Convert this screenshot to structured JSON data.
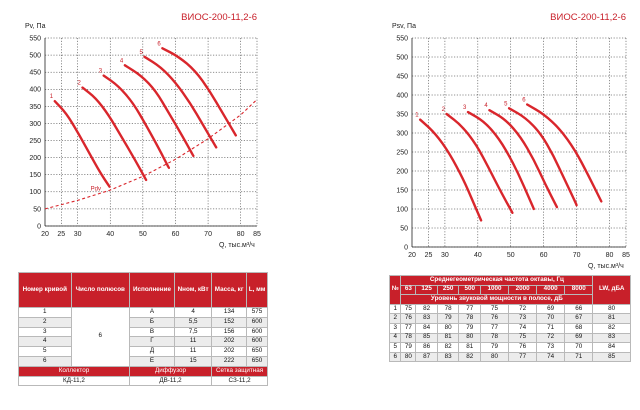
{
  "chart_data": [
    {
      "type": "line",
      "title": "ВИОС-200-11,2-6",
      "ylabel": "Pv, Па",
      "xlabel": "Q, тыс.м³/ч",
      "xlim": [
        20,
        85
      ],
      "ylim": [
        0,
        550
      ],
      "xticks": [
        "20",
        "25",
        "30",
        "40",
        "50",
        "60",
        "70",
        "80",
        "85"
      ],
      "yticks": [
        "0",
        "50",
        "100",
        "150",
        "200",
        "250",
        "300",
        "350",
        "400",
        "450",
        "500",
        "550"
      ],
      "grid": true,
      "series": [
        {
          "name": "1",
          "x": [
            23.0,
            26.5,
            30.0,
            33.5,
            37.0,
            39.8
          ],
          "y": [
            365,
            330,
            275,
            215,
            155,
            115
          ]
        },
        {
          "name": "2",
          "x": [
            31.5,
            35.5,
            39.5,
            43.5,
            47.5,
            51.0
          ],
          "y": [
            405,
            375,
            325,
            260,
            195,
            135
          ]
        },
        {
          "name": "3",
          "x": [
            38.0,
            42.5,
            47.0,
            51.0,
            55.0,
            58.0
          ],
          "y": [
            440,
            410,
            360,
            295,
            225,
            170
          ]
        },
        {
          "name": "4",
          "x": [
            44.5,
            49.5,
            54.0,
            58.0,
            62.0,
            65.5
          ],
          "y": [
            470,
            440,
            395,
            330,
            265,
            205
          ]
        },
        {
          "name": "5",
          "x": [
            50.5,
            55.5,
            60.0,
            64.5,
            68.5,
            72.5
          ],
          "y": [
            495,
            465,
            420,
            360,
            295,
            230
          ]
        },
        {
          "name": "6",
          "x": [
            56.0,
            61.0,
            66.0,
            70.5,
            74.5,
            78.5
          ],
          "y": [
            520,
            495,
            455,
            395,
            330,
            265
          ]
        }
      ],
      "system_curve": {
        "name": "Pdv",
        "x": [
          20,
          30,
          40,
          50,
          60,
          70,
          80,
          85
        ],
        "y": [
          50,
          75,
          105,
          145,
          195,
          255,
          325,
          370
        ]
      }
    },
    {
      "type": "line",
      "title": "ВИОС-200-11,2-6",
      "ylabel": "Psv, Па",
      "xlabel": "Q, тыс.м³/ч",
      "xlim": [
        20,
        85
      ],
      "ylim": [
        0,
        550
      ],
      "xticks": [
        "20",
        "25",
        "30",
        "40",
        "50",
        "60",
        "70",
        "80",
        "85"
      ],
      "yticks": [
        "0",
        "50",
        "100",
        "150",
        "200",
        "250",
        "300",
        "350",
        "400",
        "450",
        "500",
        "550"
      ],
      "grid": true,
      "series": [
        {
          "name": "1",
          "x": [
            22.5,
            27.0,
            31.5,
            35.5,
            38.5,
            41.0
          ],
          "y": [
            335,
            300,
            245,
            180,
            120,
            70
          ]
        },
        {
          "name": "2",
          "x": [
            30.5,
            35.0,
            39.5,
            43.5,
            47.0,
            50.5
          ],
          "y": [
            350,
            320,
            270,
            205,
            145,
            90
          ]
        },
        {
          "name": "3",
          "x": [
            37.0,
            42.0,
            46.5,
            50.5,
            54.0,
            57.0
          ],
          "y": [
            355,
            330,
            285,
            225,
            160,
            100
          ]
        },
        {
          "name": "4",
          "x": [
            43.5,
            48.5,
            53.0,
            57.0,
            60.5,
            64.0
          ],
          "y": [
            360,
            335,
            290,
            230,
            165,
            105
          ]
        },
        {
          "name": "5",
          "x": [
            49.5,
            54.5,
            59.0,
            63.0,
            66.5,
            70.0
          ],
          "y": [
            365,
            340,
            300,
            240,
            175,
            110
          ]
        },
        {
          "name": "6",
          "x": [
            55.0,
            60.0,
            65.0,
            69.5,
            73.5,
            77.5
          ],
          "y": [
            375,
            350,
            310,
            255,
            190,
            120
          ]
        }
      ]
    }
  ],
  "table_left": {
    "headers": [
      "Номер кривой",
      "Число полюсов",
      "Исполнение",
      "Nном, кВт",
      "Масса, кг",
      "L, мм"
    ],
    "poles": "6",
    "rows": [
      [
        "1",
        "А",
        "4",
        "134",
        "575"
      ],
      [
        "2",
        "Б",
        "5,5",
        "152",
        "600"
      ],
      [
        "3",
        "В",
        "7,5",
        "156",
        "600"
      ],
      [
        "4",
        "Г",
        "11",
        "202",
        "600"
      ],
      [
        "5",
        "Д",
        "11",
        "202",
        "650"
      ],
      [
        "6",
        "Е",
        "15",
        "222",
        "650"
      ]
    ],
    "accessories_headers": [
      "Коллектор",
      "Диффузор",
      "Сетка защитная"
    ],
    "accessories_values": [
      "КД-11,2",
      "ДВ-11,2",
      "СЗ-11,2"
    ]
  },
  "table_right": {
    "no_header": "№",
    "freq_header": "Среднегеометрическая частота октавы, Гц",
    "freqs": [
      "63",
      "125",
      "250",
      "500",
      "1000",
      "2000",
      "4000",
      "8000"
    ],
    "level_header": "Уровень звуковой мощности в полосе, дБ",
    "lw_header": "LW, дБА",
    "rows": [
      [
        "1",
        "75",
        "82",
        "78",
        "77",
        "75",
        "72",
        "69",
        "66",
        "80"
      ],
      [
        "2",
        "76",
        "83",
        "79",
        "78",
        "76",
        "73",
        "70",
        "67",
        "81"
      ],
      [
        "3",
        "77",
        "84",
        "80",
        "79",
        "77",
        "74",
        "71",
        "68",
        "82"
      ],
      [
        "4",
        "78",
        "85",
        "81",
        "80",
        "78",
        "75",
        "72",
        "69",
        "83"
      ],
      [
        "5",
        "79",
        "86",
        "82",
        "81",
        "79",
        "76",
        "73",
        "70",
        "84"
      ],
      [
        "6",
        "80",
        "87",
        "83",
        "82",
        "80",
        "77",
        "74",
        "71",
        "85"
      ]
    ]
  }
}
